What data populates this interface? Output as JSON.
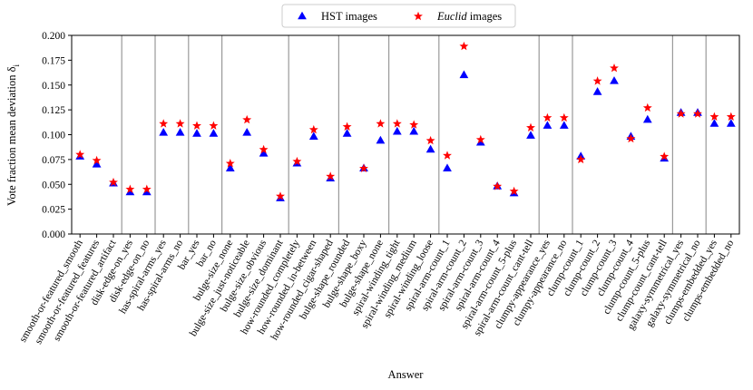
{
  "chart_data": {
    "type": "scatter",
    "xlabel": "Answer",
    "ylabel": "Vote fraction mean deviation δ",
    "ylabel_subscript": "i",
    "ylim": [
      0.0,
      0.2
    ],
    "yticks": [
      "0.000",
      "0.025",
      "0.050",
      "0.075",
      "0.100",
      "0.125",
      "0.150",
      "0.175",
      "0.200"
    ],
    "grid": "vertical separators between questions",
    "legend": {
      "placement": "top-center",
      "entries": [
        {
          "prefix": "",
          "italic": "",
          "suffix": "HST images"
        },
        {
          "prefix": "",
          "italic": "Euclid",
          "suffix": " images"
        }
      ]
    },
    "categories": [
      "smooth-or-featured_smooth",
      "smooth-or-featured_features",
      "smooth-or-featured_artifact",
      "disk-edge-on_yes",
      "disk-edge-on_no",
      "has-spiral-arms_yes",
      "has-spiral-arms_no",
      "bar_yes",
      "bar_no",
      "bulge-size_none",
      "bulge-size_just-noticeable",
      "bulge-size_obvious",
      "bulge-size_dominant",
      "how-rounded_completely",
      "how-rounded_in-between",
      "how-rounded_cigar-shaped",
      "bulge-shape_rounded",
      "bulge-shape_boxy",
      "bulge-shape_none",
      "spiral-winding_tight",
      "spiral-winding_medium",
      "spiral-winding_loose",
      "spiral-arm-count_1",
      "spiral-arm-count_2",
      "spiral-arm-count_3",
      "spiral-arm-count_4",
      "spiral-arm-count_5-plus",
      "spiral-arm-count_cant-tell",
      "clumpy-appearance_yes",
      "clumpy-appearance_no",
      "clump-count_1",
      "clump-count_2",
      "clump-count_3",
      "clump-count_4",
      "clump-count_5-plus",
      "clump-count_cant-tell",
      "galaxy-symmetrical_yes",
      "galaxy-symmetrical_no",
      "clumps-embedded_yes",
      "clumps-embedded_no"
    ],
    "separators_after_index": [
      2,
      4,
      6,
      8,
      12,
      15,
      18,
      21,
      27,
      29,
      35,
      37
    ],
    "series": [
      {
        "name": "HST images",
        "marker": "triangle",
        "color": "#0000ff",
        "values": [
          0.078,
          0.07,
          0.051,
          0.042,
          0.042,
          0.102,
          0.102,
          0.101,
          0.101,
          0.066,
          0.102,
          0.081,
          0.036,
          0.071,
          0.098,
          0.056,
          0.101,
          0.066,
          0.094,
          0.103,
          0.103,
          0.085,
          0.066,
          0.16,
          0.092,
          0.048,
          0.041,
          0.099,
          0.109,
          0.109,
          0.078,
          0.143,
          0.154,
          0.098,
          0.115,
          0.076,
          0.122,
          0.122,
          0.111,
          0.111
        ]
      },
      {
        "name": "Euclid images",
        "marker": "star",
        "color": "#ff0000",
        "values": [
          0.08,
          0.074,
          0.052,
          0.045,
          0.045,
          0.111,
          0.111,
          0.109,
          0.109,
          0.071,
          0.115,
          0.085,
          0.038,
          0.073,
          0.105,
          0.058,
          0.108,
          0.066,
          0.111,
          0.111,
          0.11,
          0.094,
          0.079,
          0.189,
          0.095,
          0.048,
          0.043,
          0.107,
          0.117,
          0.117,
          0.075,
          0.154,
          0.167,
          0.096,
          0.127,
          0.078,
          0.121,
          0.121,
          0.118,
          0.118
        ]
      }
    ]
  }
}
